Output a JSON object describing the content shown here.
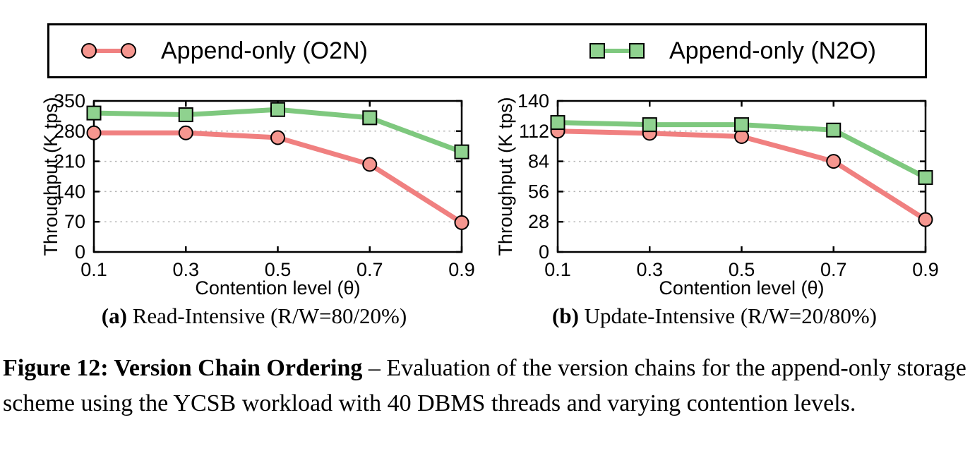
{
  "legend": {
    "entries": [
      {
        "label": "Append-only (O2N)",
        "marker": "circle",
        "line_color": "#f08080",
        "marker_fill": "#f5968f"
      },
      {
        "label": "Append-only (N2O)",
        "marker": "square",
        "line_color": "#7ec87e",
        "marker_fill": "#8fd28f"
      }
    ]
  },
  "chart_data": [
    {
      "type": "line",
      "title": "(a) Read-Intensive (R/W=80/20%)",
      "xlabel": "Contention level (θ)",
      "ylabel": "Throughput (K tps)",
      "x": [
        0.1,
        0.3,
        0.5,
        0.7,
        0.9
      ],
      "x_tick_labels": [
        "0.1",
        "0.3",
        "0.5",
        "0.7",
        "0.9"
      ],
      "ylim": [
        0,
        350
      ],
      "y_ticks": [
        0,
        70,
        140,
        210,
        280,
        350
      ],
      "grid": true,
      "legend_position": "top-outside",
      "series": [
        {
          "name": "Append-only (O2N)",
          "marker": "circle",
          "color": "#f08080",
          "marker_fill": "#f5968f",
          "values": [
            276,
            276,
            265,
            203,
            68
          ]
        },
        {
          "name": "Append-only (N2O)",
          "marker": "square",
          "color": "#7ec87e",
          "marker_fill": "#8fd28f",
          "values": [
            322,
            318,
            330,
            311,
            232
          ]
        }
      ]
    },
    {
      "type": "line",
      "title": "(b) Update-Intensive (R/W=20/80%)",
      "xlabel": "Contention level (θ)",
      "ylabel": "Throughput (K tps)",
      "x": [
        0.1,
        0.3,
        0.5,
        0.7,
        0.9
      ],
      "x_tick_labels": [
        "0.1",
        "0.3",
        "0.5",
        "0.7",
        "0.9"
      ],
      "ylim": [
        0,
        140
      ],
      "y_ticks": [
        0,
        28,
        56,
        84,
        112,
        140
      ],
      "grid": true,
      "legend_position": "top-outside",
      "series": [
        {
          "name": "Append-only (O2N)",
          "marker": "circle",
          "color": "#f08080",
          "marker_fill": "#f5968f",
          "values": [
            112,
            110,
            107,
            84,
            30
          ]
        },
        {
          "name": "Append-only (N2O)",
          "marker": "square",
          "color": "#7ec87e",
          "marker_fill": "#8fd28f",
          "values": [
            120,
            118,
            118,
            113,
            69
          ]
        }
      ]
    }
  ],
  "captions": {
    "a_bold": "(a)",
    "a_text": " Read-Intensive (R/W=80/20%)",
    "b_bold": "(b)",
    "b_text": " Update-Intensive (R/W=20/80%)"
  },
  "figure_caption": {
    "bold": "Figure 12: Version Chain Ordering",
    "text": " – Evaluation of the version chains for the append-only storage scheme using the YCSB workload with 40 DBMS threads and varying contention levels."
  }
}
